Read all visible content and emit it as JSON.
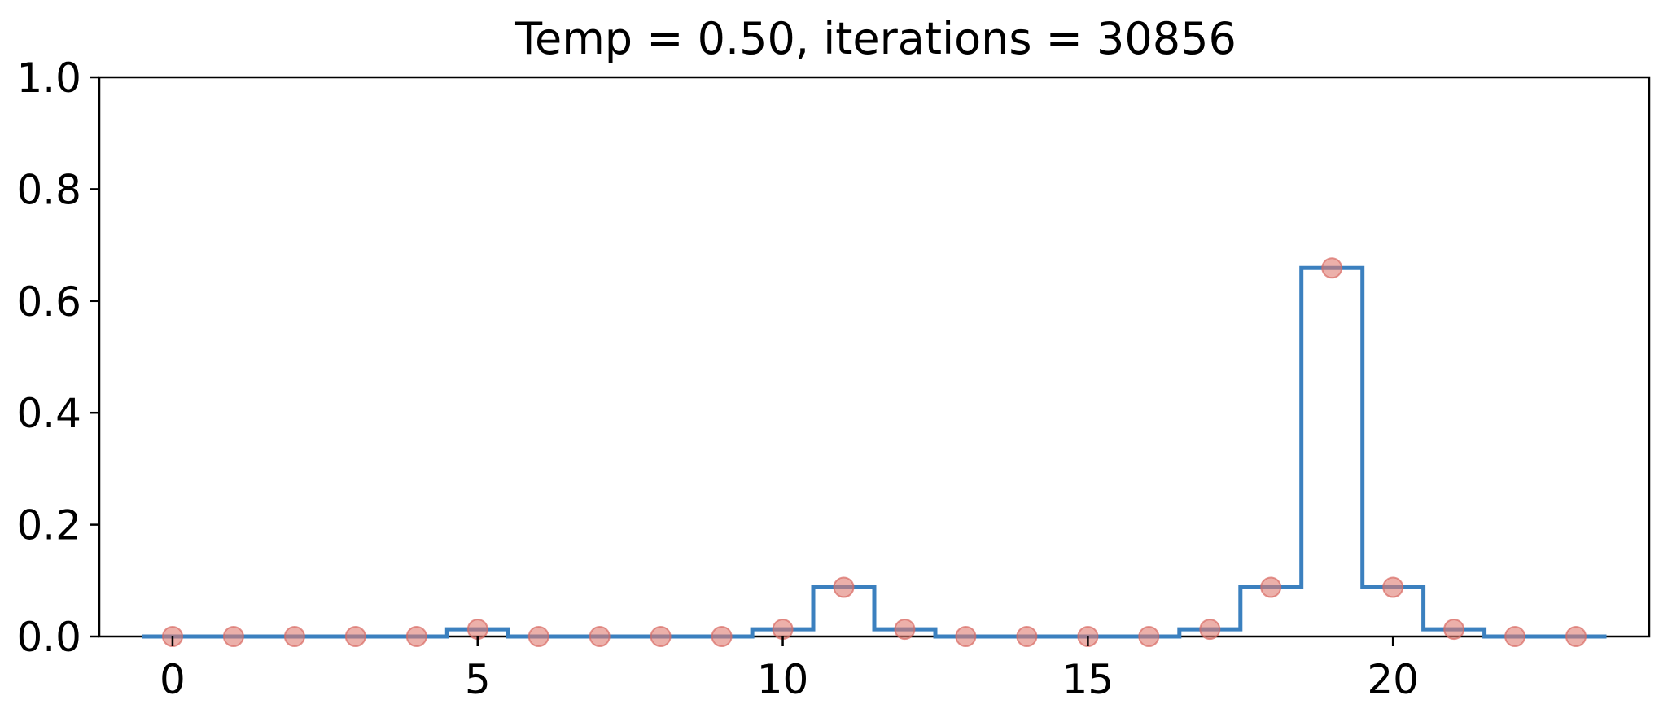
{
  "chart_data": {
    "type": "line",
    "title": "Temp = 0.50, iterations = 30856",
    "xlabel": "",
    "ylabel": "",
    "xlim": [
      -1.2,
      24.2
    ],
    "ylim": [
      0.0,
      1.0
    ],
    "xticks": [
      0,
      5,
      10,
      15,
      20
    ],
    "yticks": [
      0.0,
      0.2,
      0.4,
      0.6,
      0.8,
      1.0
    ],
    "xtick_labels": [
      "0",
      "5",
      "10",
      "15",
      "20"
    ],
    "ytick_labels": [
      "0.0",
      "0.2",
      "0.4",
      "0.6",
      "0.8",
      "1.0"
    ],
    "grid": false,
    "x": [
      0,
      1,
      2,
      3,
      4,
      5,
      6,
      7,
      8,
      9,
      10,
      11,
      12,
      13,
      14,
      15,
      16,
      17,
      18,
      19,
      20,
      21,
      22,
      23
    ],
    "series": [
      {
        "style": "step",
        "color": "#3b80bf",
        "values": [
          0,
          0,
          0,
          0,
          0,
          0.013,
          0,
          0,
          0,
          0,
          0.013,
          0.088,
          0.013,
          0,
          0,
          0,
          0,
          0.013,
          0.088,
          0.659,
          0.088,
          0.013,
          0,
          0
        ]
      },
      {
        "style": "markers",
        "color": "#e07b72",
        "values": [
          0,
          0,
          0,
          0,
          0,
          0.013,
          0,
          0,
          0,
          0,
          0.013,
          0.088,
          0.013,
          0,
          0,
          0,
          0,
          0.013,
          0.088,
          0.659,
          0.088,
          0.013,
          0,
          0
        ]
      }
    ]
  }
}
